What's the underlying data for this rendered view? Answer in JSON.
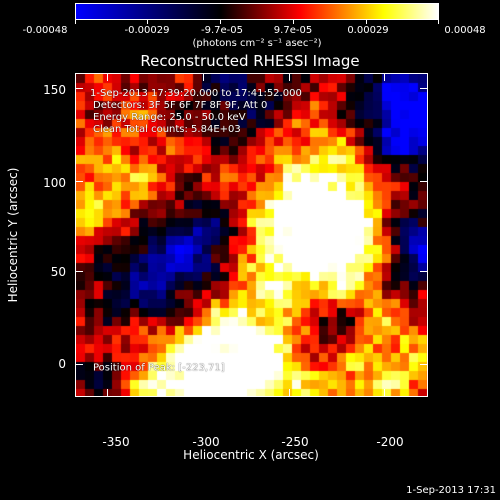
{
  "colorbar": {
    "tick_labels": [
      "-0.00048",
      "-0.00029",
      "-9.7e-05",
      "9.7e-05",
      "0.00029",
      "0.00048"
    ],
    "unit_label": "(photons cm⁻² s⁻¹ asec⁻²)",
    "colormap": [
      "#0000ff",
      "#000000",
      "#ff0000",
      "#ffff00",
      "#ffffff"
    ]
  },
  "plot": {
    "title": "Reconstructed RHESSI Image",
    "info": {
      "time_range": "1-Sep-2013 17:39:20.000 to 17:41:52.000",
      "detectors": "Detectors: 3F 5F 6F 7F 8F 9F, Att 0",
      "energy_range": "Energy Range: 25.0 - 50.0 keV",
      "clean_counts": "Clean    Total counts: 5.84E+03",
      "peak_position": "Position of Peak: [-223,71]"
    }
  },
  "axes": {
    "x_title": "Heliocentric X (arcsec)",
    "y_title": "Heliocentric Y (arcsec)",
    "x_ticks": [
      "-350",
      "-300",
      "-250",
      "-200"
    ],
    "y_ticks": [
      "150",
      "100",
      "50",
      "0"
    ]
  },
  "footer": {
    "timestamp": "1-Sep-2013 17:31"
  }
}
